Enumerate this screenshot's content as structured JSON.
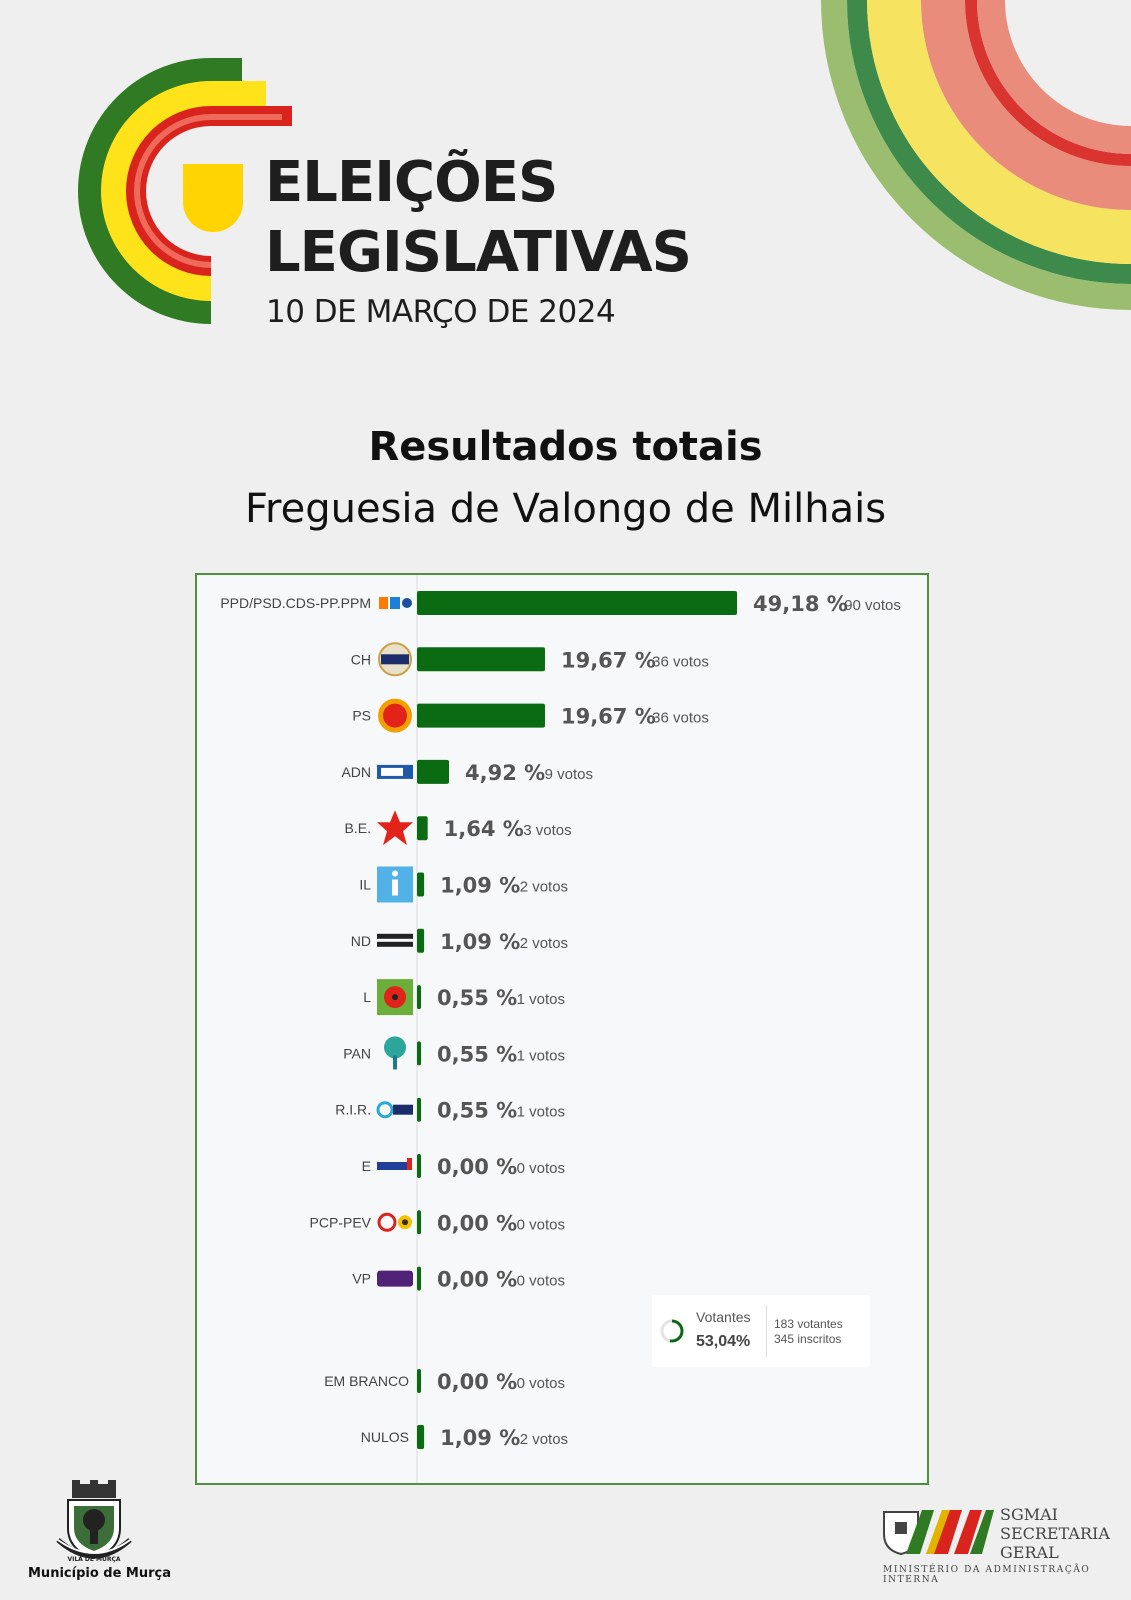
{
  "header": {
    "logo_line1": "ELEIÇÕES",
    "logo_line2": "LEGISLATIVAS",
    "logo_date": "10 DE MARÇO DE 2024",
    "title": "Resultados totais",
    "subtitle": "Freguesia de Valongo de Milhais"
  },
  "colors": {
    "bar": "#0b6b12",
    "frame": "#4f8f3f",
    "rainbow_green_light": "#9bbd6f",
    "rainbow_green_dark": "#3d8a4a",
    "rainbow_yellow": "#f6e460",
    "rainbow_red": "#e36b62"
  },
  "chart_data": {
    "type": "bar",
    "orientation": "horizontal",
    "categories": [
      "PPD/PSD.CDS-PP.PPM",
      "CH",
      "PS",
      "ADN",
      "B.E.",
      "IL",
      "ND",
      "L",
      "PAN",
      "R.I.R.",
      "E",
      "PCP-PEV",
      "VP",
      "EM BRANCO",
      "NULOS"
    ],
    "values": [
      49.18,
      19.67,
      19.67,
      4.92,
      1.64,
      1.09,
      1.09,
      0.55,
      0.55,
      0.55,
      0.0,
      0.0,
      0.0,
      0.0,
      1.09
    ],
    "value_labels": [
      "49,18 %",
      "19,67 %",
      "19,67 %",
      "4,92 %",
      "1,64 %",
      "1,09 %",
      "1,09 %",
      "0,55 %",
      "0,55 %",
      "0,55 %",
      "0,00 %",
      "0,00 %",
      "0,00 %",
      "0,00 %",
      "1,09 %"
    ],
    "votes": [
      90,
      36,
      36,
      9,
      3,
      2,
      2,
      1,
      1,
      1,
      0,
      0,
      0,
      0,
      2
    ],
    "votes_labels": [
      "90 votos",
      "36 votos",
      "36 votos",
      "9 votos",
      "3 votos",
      "2 votos",
      "2 votos",
      "1 votos",
      "1 votos",
      "1 votos",
      "0 votos",
      "0 votos",
      "0 votos",
      "0 votos",
      "2 votos"
    ],
    "party_icons": [
      "ppd-psd-cds-ppm-icon",
      "chega-icon",
      "ps-fist-rose-icon",
      "adn-icon",
      "be-star-icon",
      "il-icon",
      "nova-direita-icon",
      "livre-poppy-icon",
      "pan-tree-icon",
      "rir-icon",
      "ergue-te-icon",
      "pcp-pev-icon",
      "volt-icon",
      "",
      ""
    ],
    "xlim": [
      0,
      49.18
    ]
  },
  "turnout": {
    "label": "Votantes",
    "percent": "53,04%",
    "fraction": 0.5304,
    "voters": "183 votantes",
    "registered": "345 inscritos"
  },
  "footer": {
    "municipality": "Município de Murça",
    "crest_text": "VILA DE MURÇA",
    "sgmai_line1": "SGMAI",
    "sgmai_line2": "SECRETARIA",
    "sgmai_line3": "GERAL",
    "ministry": "MINISTÉRIO DA ADMINISTRAÇÃO INTERNA"
  }
}
